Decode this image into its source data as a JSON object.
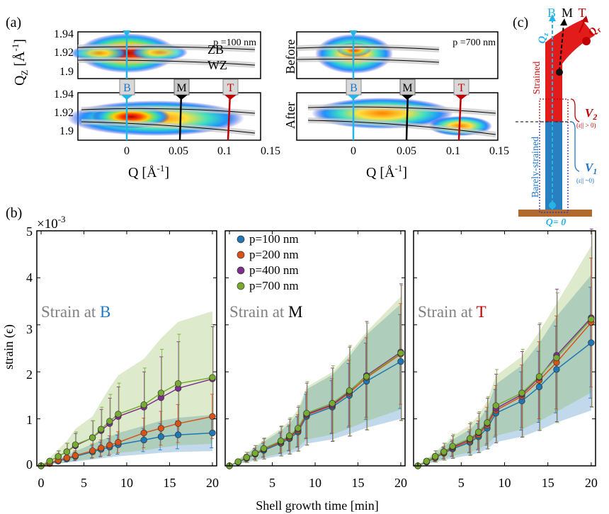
{
  "panel_labels": {
    "a": "(a)",
    "b": "(b)",
    "c": "(c)"
  },
  "panel_a": {
    "ylabel": "Q",
    "ylabel_sub": "Z",
    "ylabel_unit": "[Å",
    "ylabel_unit_sup": "-1",
    "ylabel_close": "]",
    "xlabel": "Q [Å",
    "xlabel_sup": "-1",
    "xlabel_close": "]",
    "yticks_top": [
      "1.94",
      "1.92",
      "1.9"
    ],
    "yticks_bottom": [
      "1.94",
      "1.92",
      "1.9"
    ],
    "xticks": [
      "0",
      "0.05",
      "0.1",
      "0.15"
    ],
    "left_title": "p =100 nm",
    "right_title": "p =700 nm",
    "before_label": "Before",
    "after_label": "After",
    "zb_label": "ZB",
    "wz_label": "WZ",
    "markers": [
      "B",
      "M",
      "T"
    ]
  },
  "panel_c": {
    "top_labels": [
      "B",
      "M",
      "T"
    ],
    "qz": "Q",
    "qz_sub": "z",
    "qr": "Q",
    "qr_sub": "r",
    "strained": "Strained",
    "barely": "Barely-strained",
    "v2": "V",
    "v2_sub": "2",
    "v2_cond": "(ε|| > 0)",
    "v1": "V",
    "v1_sub": "1",
    "v1_cond": "(ε|| ~0)",
    "q0": "Q= 0"
  },
  "colors": {
    "p100": "#1f77b4",
    "p200": "#d95319",
    "p400": "#7e2f8e",
    "p700": "#77ac30",
    "blue_label": "#1f78c8",
    "red_label": "#c00000",
    "gray_title": "#808080",
    "cyan": "#25b4e6"
  },
  "chart_data": {
    "type": "line",
    "ylabel": "strain (ϵ)",
    "xlabel": "Shell growth time [min]",
    "y_exponent": "×10",
    "y_exponent_sup": "-3",
    "ylim": [
      0,
      5
    ],
    "yticks": [
      "0",
      "1",
      "2",
      "3",
      "4",
      "5"
    ],
    "xticks": [
      "0",
      "5",
      "10",
      "15",
      "20"
    ],
    "xticks_mid": [
      "5",
      "10",
      "15",
      "20"
    ],
    "legend": [
      "p=100 nm",
      "p=200 nm",
      "p=400 nm",
      "p=700 nm"
    ],
    "x": [
      0,
      1,
      2,
      3,
      4,
      6,
      7,
      8,
      9,
      12,
      14,
      16,
      20
    ],
    "panels": [
      {
        "title_prefix": "Strain at ",
        "title_letter": "B",
        "letter_color": "#1f78c8",
        "series": [
          {
            "name": "p=100 nm",
            "values": [
              0,
              0.05,
              0.1,
              0.15,
              0.2,
              0.3,
              0.35,
              0.4,
              0.45,
              0.55,
              0.62,
              0.66,
              0.7
            ]
          },
          {
            "name": "p=200 nm",
            "values": [
              0,
              0.06,
              0.12,
              0.17,
              0.22,
              0.32,
              0.38,
              0.44,
              0.5,
              0.7,
              0.8,
              0.9,
              1.05
            ]
          },
          {
            "name": "p=400 nm",
            "values": [
              0,
              0.1,
              0.2,
              0.3,
              0.43,
              0.6,
              0.75,
              0.9,
              1.05,
              1.25,
              1.45,
              1.65,
              1.85
            ]
          },
          {
            "name": "p=700 nm",
            "values": [
              0,
              0.1,
              0.2,
              0.3,
              0.45,
              0.6,
              0.78,
              0.95,
              1.1,
              1.3,
              1.55,
              1.75,
              1.88
            ]
          }
        ]
      },
      {
        "title_prefix": "Strain at ",
        "title_letter": "M",
        "letter_color": "#000000",
        "series": [
          {
            "name": "p=100 nm",
            "values": [
              0,
              0.08,
              0.16,
              0.25,
              0.33,
              0.48,
              0.58,
              0.72,
              1.05,
              1.25,
              1.5,
              1.8,
              2.22
            ]
          },
          {
            "name": "p=200 nm",
            "values": [
              0,
              0.08,
              0.17,
              0.26,
              0.35,
              0.5,
              0.6,
              0.75,
              1.08,
              1.28,
              1.55,
              1.88,
              2.38
            ]
          },
          {
            "name": "p=400 nm",
            "values": [
              0,
              0.08,
              0.18,
              0.27,
              0.36,
              0.52,
              0.62,
              0.78,
              1.1,
              1.3,
              1.58,
              1.92,
              2.42
            ]
          },
          {
            "name": "p=700 nm",
            "values": [
              0,
              0.09,
              0.18,
              0.27,
              0.37,
              0.53,
              0.64,
              0.8,
              1.12,
              1.33,
              1.6,
              1.9,
              2.4
            ]
          }
        ]
      },
      {
        "title_prefix": "Strain at ",
        "title_letter": "T",
        "letter_color": "#c00000",
        "series": [
          {
            "name": "p=100 nm",
            "values": [
              0,
              0.08,
              0.17,
              0.27,
              0.36,
              0.5,
              0.62,
              0.8,
              1.12,
              1.38,
              1.68,
              2.05,
              2.62
            ]
          },
          {
            "name": "p=200 nm",
            "values": [
              0,
              0.09,
              0.18,
              0.28,
              0.38,
              0.53,
              0.66,
              0.86,
              1.18,
              1.48,
              1.82,
              2.2,
              3.05
            ]
          },
          {
            "name": "p=400 nm",
            "values": [
              0,
              0.1,
              0.2,
              0.3,
              0.4,
              0.56,
              0.7,
              0.9,
              1.22,
              1.52,
              1.88,
              2.35,
              3.15
            ]
          },
          {
            "name": "p=700 nm",
            "values": [
              0,
              0.1,
              0.2,
              0.3,
              0.42,
              0.58,
              0.72,
              0.92,
              1.28,
              1.55,
              1.9,
              2.3,
              3.12
            ]
          }
        ]
      }
    ]
  }
}
